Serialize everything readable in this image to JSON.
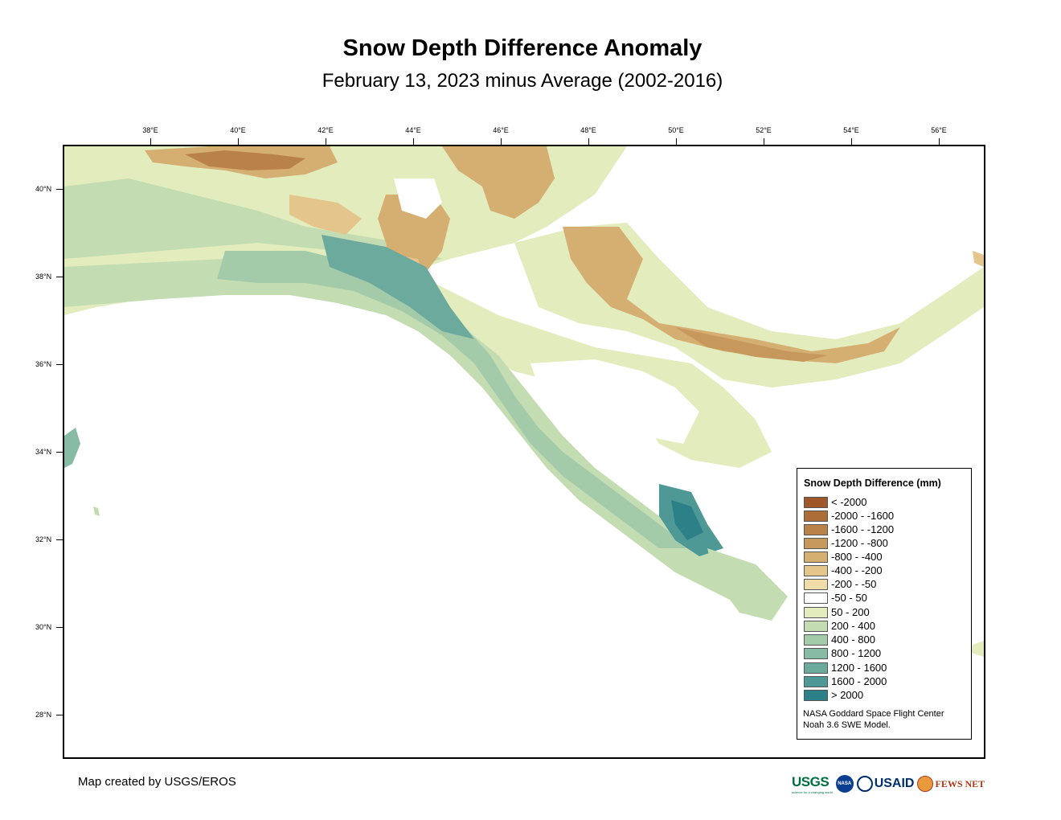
{
  "title": "Snow Depth Difference Anomaly",
  "subtitle": "February 13, 2023 minus Average (2002-2016)",
  "axes": {
    "longitude_ticks": [
      "38°E",
      "40°E",
      "42°E",
      "44°E",
      "46°E",
      "48°E",
      "50°E",
      "52°E",
      "54°E",
      "56°E"
    ],
    "latitude_ticks": [
      "40°N",
      "38°N",
      "36°N",
      "34°N",
      "32°N",
      "30°N",
      "28°N"
    ]
  },
  "legend": {
    "title": "Snow Depth Difference (mm)",
    "classes": [
      {
        "label": "< -2000",
        "color": "#a0582a"
      },
      {
        "label": "-2000 - -1600",
        "color": "#ad6d38"
      },
      {
        "label": "-1600 - -1200",
        "color": "#b98248"
      },
      {
        "label": "-1200 - -800",
        "color": "#c7985b"
      },
      {
        "label": "-800 - -400",
        "color": "#d5af72"
      },
      {
        "label": "-400 - -200",
        "color": "#e4c68c"
      },
      {
        "label": "-200 - -50",
        "color": "#f0dca8"
      },
      {
        "label": "-50 - 50",
        "color": "#ffffff"
      },
      {
        "label": "50 - 200",
        "color": "#e2ecbd"
      },
      {
        "label": "200 - 400",
        "color": "#c3dcb2"
      },
      {
        "label": "400 - 800",
        "color": "#a4cba9"
      },
      {
        "label": "800 - 1200",
        "color": "#88bba3"
      },
      {
        "label": "1200 - 1600",
        "color": "#6caa9d"
      },
      {
        "label": "1600 - 2000",
        "color": "#4e9896"
      },
      {
        "label": "> 2000",
        "color": "#2c8189"
      }
    ],
    "credit_line1": "NASA Goddard Space Flight Center",
    "credit_line2": "Noah 3.6 SWE Model."
  },
  "footer": "Map created by USGS/EROS",
  "logos": {
    "usgs": "USGS",
    "usgs_tagline": "science for a changing world",
    "nasa": "NASA",
    "usaid": "USAID",
    "fews": "FEWS NET"
  }
}
